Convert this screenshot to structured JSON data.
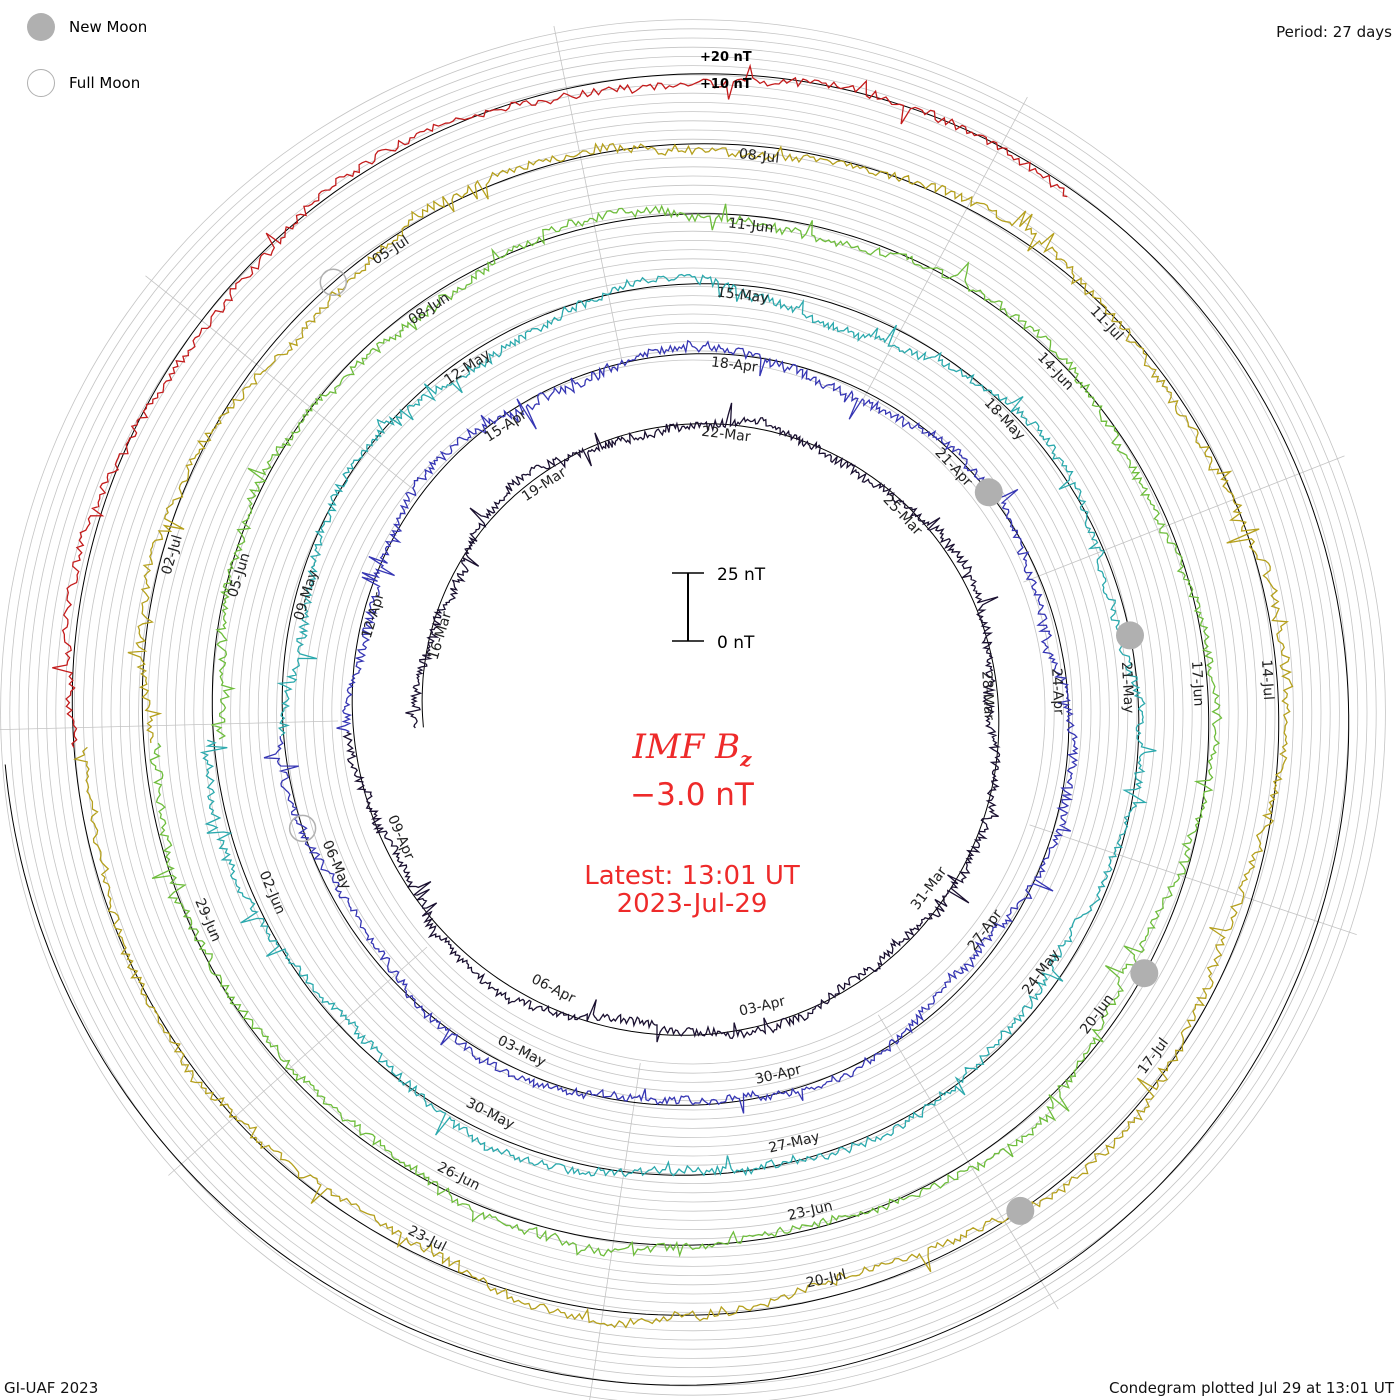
{
  "legend": {
    "new_moon_label": "New Moon",
    "full_moon_label": "Full Moon",
    "new_moon_color": "#b0b0b0",
    "full_moon_color": "#b0b0b0"
  },
  "period_label": "Period: 27 days",
  "credit": "GI-UAF 2023",
  "plotted_label": "Condegram plotted Jul 29 at 13:01 UT",
  "center": {
    "title_main": "IMF B",
    "title_sub": "z",
    "value": "−3.0 nT",
    "latest": "Latest: 13:01 UT",
    "date": "2023-Jul-29",
    "text_color": "#ee2a2a"
  },
  "scale_bar": {
    "top_label": "25 nT",
    "bottom_label": "0 nT"
  },
  "reference_labels": [
    "+20 nT",
    "+10 nT"
  ],
  "chart_data": {
    "type": "line",
    "title": "IMF Bz",
    "period_days": 27,
    "grid": true,
    "series": [
      {
        "name": "",
        "start": "2023-Mar-13",
        "color": "#1a1030"
      },
      {
        "name": "",
        "start": "2023-Apr-09",
        "color": "#3636b4"
      },
      {
        "name": "",
        "start": "2023-May-06",
        "color": "#2ba9ad"
      },
      {
        "name": "",
        "start": "2023-Jun-02",
        "color": "#6ebd3c"
      },
      {
        "name": "",
        "start": "2023-Jun-29",
        "color": "#b5a01d"
      },
      {
        "name": "",
        "start": "2023-Jul-26",
        "color": "#c41c1c"
      }
    ],
    "date_labels": [
      "16-Mar",
      "19-Mar",
      "22-Mar",
      "25-Mar",
      "28-Mar",
      "31-Mar",
      "03-Apr",
      "06-Apr",
      "09-Apr",
      "12-Apr",
      "15-Apr",
      "18-Apr",
      "21-Apr",
      "24-Apr",
      "27-Apr",
      "30-Apr",
      "03-May",
      "06-May",
      "09-May",
      "12-May",
      "15-May",
      "18-May",
      "21-May",
      "24-May",
      "27-May",
      "30-May",
      "02-Jun",
      "05-Jun",
      "08-Jun",
      "11-Jun",
      "14-Jun",
      "17-Jun",
      "20-Jun",
      "23-Jun",
      "26-Jun",
      "29-Jun",
      "02-Jul",
      "05-Jul",
      "08-Jul",
      "11-Jul",
      "14-Jul",
      "17-Jul",
      "20-Jul",
      "23-Jul"
    ],
    "new_moons": [
      "2023-Apr-20",
      "2023-May-19",
      "2023-Jun-18",
      "2023-Jul-17"
    ],
    "full_moons": [
      "2023-May-05",
      "2023-Jul-03"
    ],
    "latest_value_nT": -3.0
  }
}
